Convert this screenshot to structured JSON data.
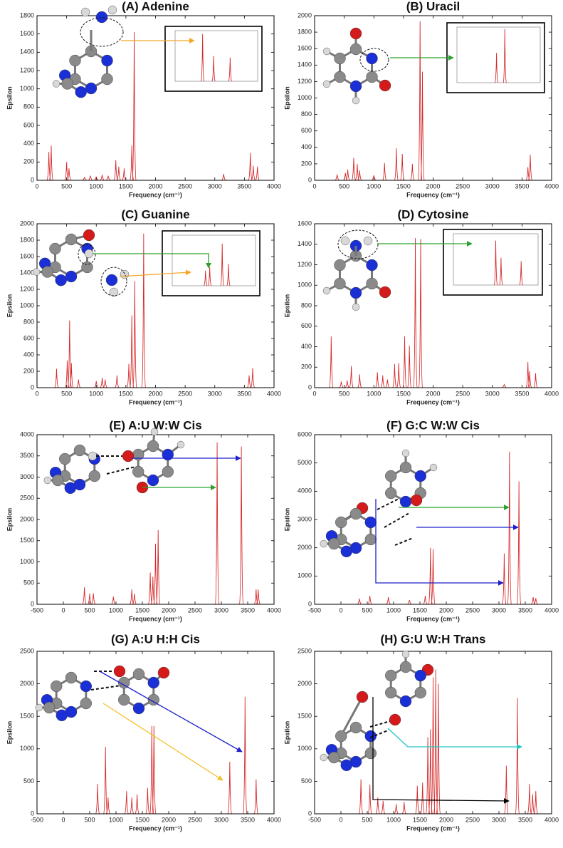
{
  "chart_data": [
    {
      "type": "spectrum",
      "title": "(A) Adenine",
      "x_label": "Frequency (cm⁻¹)",
      "y_label": "Epsilon",
      "color": "#d62728",
      "xlim": [
        0,
        4000
      ],
      "xticks": [
        0,
        500,
        1000,
        1500,
        2000,
        2500,
        3000,
        3500,
        4000
      ],
      "ylim": [
        0,
        1800
      ],
      "yticks": [
        0,
        200,
        400,
        600,
        800,
        1000,
        1200,
        1400,
        1600,
        1800
      ],
      "x": [
        200,
        240,
        500,
        540,
        800,
        900,
        1000,
        1100,
        1200,
        1330,
        1380,
        1470,
        1600,
        1640,
        3150,
        3600,
        3650,
        3720
      ],
      "values": [
        310,
        380,
        200,
        130,
        30,
        50,
        40,
        60,
        50,
        220,
        150,
        130,
        380,
        1620,
        70,
        300,
        160,
        150
      ],
      "inset": {
        "xlim": [
          3500,
          3800
        ],
        "ylim": [
          0,
          300
        ],
        "x": [
          3600,
          3640,
          3700
        ],
        "values": [
          280,
          150,
          140
        ]
      }
    },
    {
      "type": "spectrum",
      "title": "(B) Uracil",
      "x_label": "Frequency (cm⁻¹)",
      "y_label": "Epsilon",
      "color": "#d62728",
      "xlim": [
        0,
        4000
      ],
      "xticks": [
        0,
        500,
        1000,
        1500,
        2000,
        2500,
        3000,
        3500,
        4000
      ],
      "ylim": [
        0,
        2000
      ],
      "yticks": [
        0,
        200,
        400,
        600,
        800,
        1000,
        1200,
        1400,
        1600,
        1800,
        2000
      ],
      "x": [
        380,
        520,
        560,
        660,
        720,
        760,
        1000,
        1180,
        1380,
        1480,
        1650,
        1780,
        1820,
        3600,
        3640
      ],
      "values": [
        70,
        90,
        130,
        270,
        200,
        120,
        60,
        210,
        390,
        320,
        200,
        1930,
        1320,
        160,
        310
      ],
      "inset": {
        "xlim": [
          3400,
          3800
        ],
        "ylim": [
          0,
          300
        ],
        "x": [
          3590,
          3630
        ],
        "values": [
          160,
          290
        ]
      }
    },
    {
      "type": "spectrum",
      "title": "(C) Guanine",
      "x_label": "Frequency (cm⁻¹)",
      "y_label": "Epsilon",
      "color": "#d62728",
      "xlim": [
        0,
        4000
      ],
      "xticks": [
        0,
        500,
        1000,
        1500,
        2000,
        2500,
        3000,
        3500,
        4000
      ],
      "ylim": [
        0,
        2000
      ],
      "yticks": [
        0,
        200,
        400,
        600,
        800,
        1000,
        1200,
        1400,
        1600,
        1800,
        2000
      ],
      "x": [
        330,
        510,
        550,
        580,
        700,
        1000,
        1100,
        1150,
        1350,
        1550,
        1600,
        1650,
        1800,
        3580,
        3640
      ],
      "values": [
        230,
        330,
        820,
        300,
        100,
        80,
        120,
        100,
        150,
        290,
        880,
        1300,
        1880,
        150,
        240
      ],
      "inset": {
        "xlim": [
          3400,
          3800
        ],
        "ylim": [
          0,
          300
        ],
        "x": [
          3560,
          3580,
          3640,
          3670
        ],
        "values": [
          90,
          110,
          250,
          130
        ]
      }
    },
    {
      "type": "spectrum",
      "title": "(D) Cytosine",
      "x_label": "Frequency (cm⁻¹)",
      "y_label": "Epsilon",
      "color": "#d62728",
      "xlim": [
        0,
        4000
      ],
      "xticks": [
        0,
        500,
        1000,
        1500,
        2000,
        2500,
        3000,
        3500,
        4000
      ],
      "ylim": [
        0,
        1600
      ],
      "yticks": [
        0,
        200,
        400,
        600,
        800,
        1000,
        1200,
        1400,
        1600
      ],
      "x": [
        280,
        450,
        550,
        620,
        760,
        1060,
        1150,
        1230,
        1350,
        1420,
        1520,
        1600,
        1700,
        1790,
        3200,
        3600,
        3630,
        3730
      ],
      "values": [
        500,
        60,
        70,
        210,
        130,
        150,
        120,
        80,
        230,
        240,
        500,
        410,
        1460,
        1450,
        30,
        250,
        160,
        140
      ],
      "inset": {
        "xlim": [
          3400,
          3800
        ],
        "ylim": [
          0,
          300
        ],
        "x": [
          3600,
          3625,
          3720
        ],
        "values": [
          260,
          160,
          140
        ]
      }
    },
    {
      "type": "spectrum",
      "title": "(E) A:U W:W Cis",
      "x_label": "Frequency (cm⁻¹)",
      "y_label": "Epsilon",
      "color": "#d62728",
      "xlim": [
        -500,
        4000
      ],
      "xticks": [
        -500,
        0,
        500,
        1000,
        1500,
        2000,
        2500,
        3000,
        3500,
        4000
      ],
      "ylim": [
        0,
        4000
      ],
      "yticks": [
        0,
        500,
        1000,
        1500,
        2000,
        2500,
        3000,
        3500,
        4000
      ],
      "x": [
        400,
        500,
        570,
        950,
        1300,
        1350,
        1650,
        1700,
        1750,
        1800,
        2920,
        3380,
        3660,
        3700
      ],
      "values": [
        400,
        250,
        260,
        180,
        350,
        250,
        750,
        650,
        1430,
        1750,
        3820,
        3720,
        350,
        350
      ]
    },
    {
      "type": "spectrum",
      "title": "(F) G:C W:W Cis",
      "x_label": "Frequency (cm⁻¹)",
      "y_label": "Epsilon",
      "color": "#d62728",
      "xlim": [
        -500,
        4000
      ],
      "xticks": [
        -500,
        0,
        500,
        1000,
        1500,
        2000,
        2500,
        3000,
        3500,
        4000
      ],
      "ylim": [
        0,
        6000
      ],
      "yticks": [
        0,
        1000,
        2000,
        3000,
        4000,
        5000,
        6000
      ],
      "x": [
        350,
        550,
        900,
        1300,
        1600,
        1700,
        1750,
        3100,
        3200,
        3380,
        3650,
        3700
      ],
      "values": [
        200,
        300,
        250,
        150,
        300,
        2000,
        1950,
        1800,
        5400,
        4350,
        250,
        220
      ]
    },
    {
      "type": "spectrum",
      "title": "(G) A:U H:H Cis",
      "x_label": "Frequency (cm⁻¹)",
      "y_label": "Epsilon",
      "color": "#d62728",
      "xlim": [
        -500,
        4000
      ],
      "xticks": [
        -500,
        0,
        500,
        1000,
        1500,
        2000,
        2500,
        3000,
        3500,
        4000
      ],
      "ylim": [
        0,
        2500
      ],
      "yticks": [
        0,
        500,
        1000,
        1500,
        2000,
        2500
      ],
      "x": [
        650,
        800,
        850,
        1200,
        1300,
        1400,
        1600,
        1680,
        1720,
        3160,
        3450,
        3660
      ],
      "values": [
        460,
        1030,
        250,
        350,
        250,
        300,
        400,
        1350,
        1350,
        800,
        1800,
        530
      ]
    },
    {
      "type": "spectrum",
      "title": "(H) G:U W:H Trans",
      "x_label": "Frequency (cm⁻¹)",
      "y_label": "Epsilon",
      "color": "#d62728",
      "xlim": [
        -500,
        4000
      ],
      "xticks": [
        -500,
        0,
        500,
        1000,
        1500,
        2000,
        2500,
        3000,
        3500,
        4000
      ],
      "ylim": [
        0,
        2500
      ],
      "yticks": [
        0,
        500,
        1000,
        1500,
        2000,
        2500
      ],
      "x": [
        380,
        550,
        700,
        800,
        1050,
        1200,
        1450,
        1550,
        1650,
        1700,
        1750,
        1800,
        1850,
        3140,
        3350,
        3580,
        3640,
        3700
      ],
      "values": [
        530,
        450,
        250,
        200,
        150,
        180,
        430,
        480,
        1180,
        1300,
        2100,
        2220,
        2000,
        740,
        1780,
        460,
        300,
        350
      ]
    }
  ]
}
